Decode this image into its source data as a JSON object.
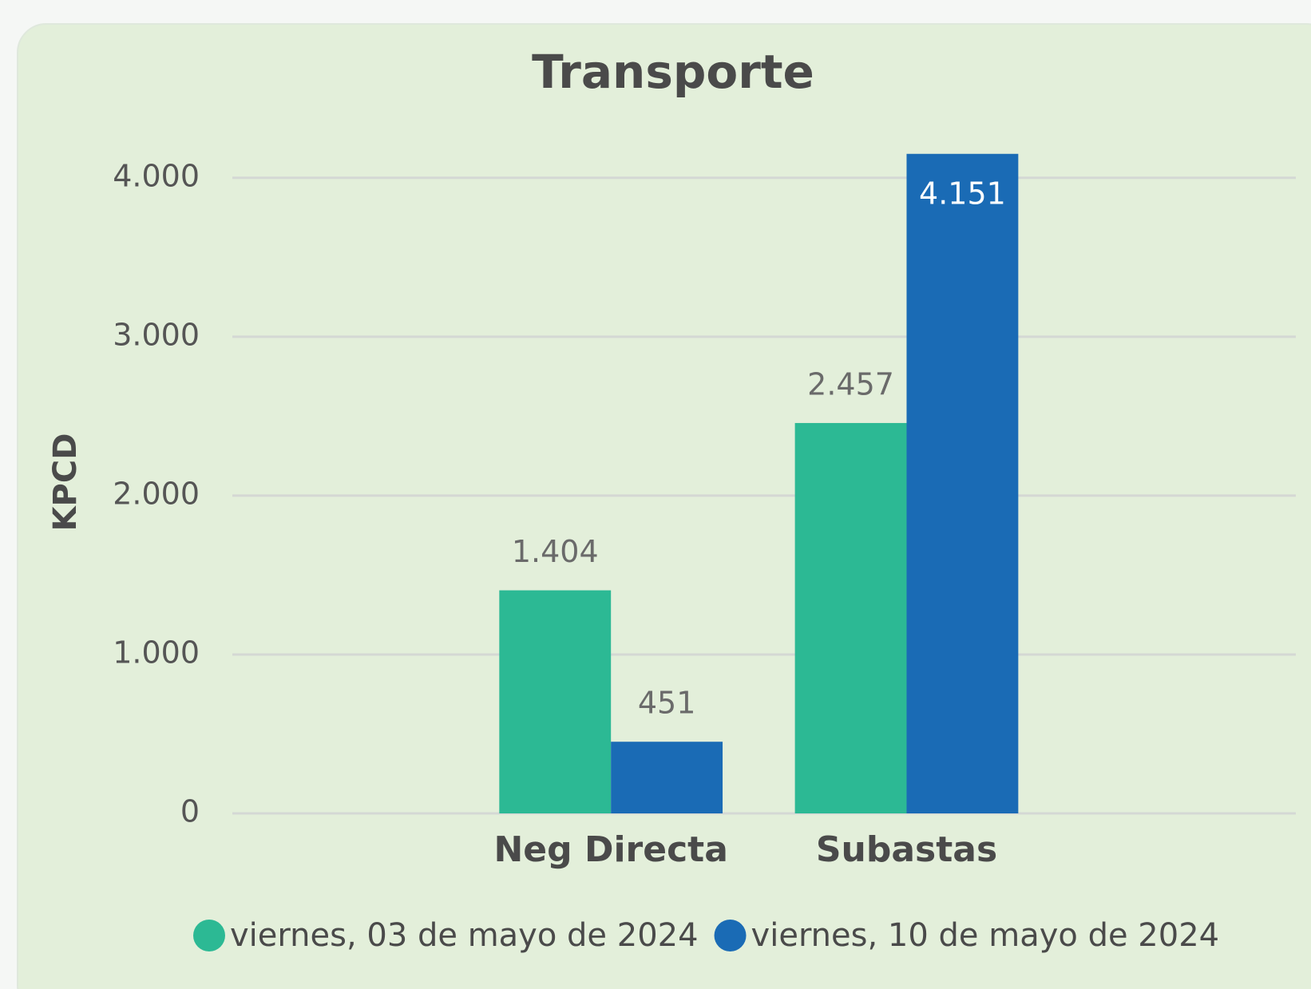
{
  "chart_data": {
    "type": "bar",
    "title": "Transporte",
    "y_label": "KPCD",
    "categories": [
      "Neg Directa",
      "Subastas"
    ],
    "series": [
      {
        "name": "viernes, 03 de mayo de 2024",
        "color": "#2cb994",
        "values": [
          1404,
          2457
        ],
        "value_labels": [
          "1.404",
          "2.457"
        ]
      },
      {
        "name": "viernes, 10 de mayo de 2024",
        "color": "#1a6bb5",
        "values": [
          451,
          4151
        ],
        "value_labels": [
          "451",
          "4.151"
        ]
      }
    ],
    "ylim": [
      0,
      4200
    ],
    "yticks": [
      0,
      {
        "value": 1000,
        "label": "1.000"
      },
      {
        "value": 2000,
        "label": "2.000"
      },
      {
        "value": 3000,
        "label": "3.000"
      },
      {
        "value": 4000,
        "label": "4.000"
      }
    ],
    "grid": true,
    "legend": "bottom"
  }
}
